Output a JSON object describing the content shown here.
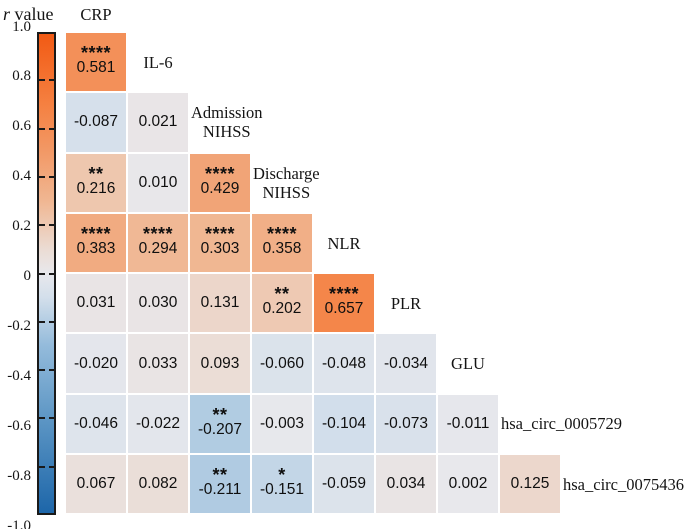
{
  "figure": {
    "colorbar": {
      "title_italic": "r",
      "title_rest": " value",
      "ticks": [
        "1.0",
        "0.8",
        "0.6",
        "0.4",
        "0.2",
        "0",
        "-0.2",
        "-0.4",
        "-0.6",
        "-0.8",
        "-1.0"
      ]
    },
    "top_label": "CRP"
  },
  "chart_data": {
    "type": "heatmap",
    "subtype": "lower_triangle_correlation_matrix",
    "colorbar_label": "r value",
    "colorbar_range": [
      -1,
      1
    ],
    "legend_position": "left",
    "grid": "off",
    "variables": [
      "CRP",
      "IL-6",
      "Admission NIHSS",
      "Discharge NIHSS",
      "NLR",
      "PLR",
      "GLU",
      "hsa_circ_0005729",
      "hsa_circ_0075436"
    ],
    "colormap_stops": [
      {
        "t": -1.0,
        "c": "#1D66A9"
      },
      {
        "t": -0.6,
        "c": "#5E97C5"
      },
      {
        "t": -0.3,
        "c": "#94BBDB"
      },
      {
        "t": -0.1,
        "c": "#D3DFEB"
      },
      {
        "t": 0.0,
        "c": "#E8E8EC"
      },
      {
        "t": 0.1,
        "c": "#EBDCD4"
      },
      {
        "t": 0.3,
        "c": "#F0B793"
      },
      {
        "t": 0.5,
        "c": "#F29A68"
      },
      {
        "t": 0.7,
        "c": "#F58142"
      },
      {
        "t": 1.0,
        "c": "#F25A14"
      }
    ],
    "rows": [
      {
        "variable": "IL-6",
        "label_lines": [
          "IL-6"
        ],
        "label_align": "center",
        "cells": [
          {
            "vs": "CRP",
            "value": "0.581",
            "sig": "****"
          }
        ]
      },
      {
        "variable": "Admission NIHSS",
        "label_lines": [
          "Admission",
          "NIHSS"
        ],
        "label_align": "left",
        "cells": [
          {
            "vs": "CRP",
            "value": "-0.087",
            "sig": ""
          },
          {
            "vs": "IL-6",
            "value": "0.021",
            "sig": ""
          }
        ]
      },
      {
        "variable": "Discharge NIHSS",
        "label_lines": [
          "Discharge",
          "NIHSS"
        ],
        "label_align": "left",
        "cells": [
          {
            "vs": "CRP",
            "value": "0.216",
            "sig": "**"
          },
          {
            "vs": "IL-6",
            "value": "0.010",
            "sig": ""
          },
          {
            "vs": "Admission NIHSS",
            "value": "0.429",
            "sig": "****"
          }
        ]
      },
      {
        "variable": "NLR",
        "label_lines": [
          "NLR"
        ],
        "label_align": "center",
        "cells": [
          {
            "vs": "CRP",
            "value": "0.383",
            "sig": "****"
          },
          {
            "vs": "IL-6",
            "value": "0.294",
            "sig": "****"
          },
          {
            "vs": "Admission NIHSS",
            "value": "0.303",
            "sig": "****"
          },
          {
            "vs": "Discharge NIHSS",
            "value": "0.358",
            "sig": "****"
          }
        ]
      },
      {
        "variable": "PLR",
        "label_lines": [
          "PLR"
        ],
        "label_align": "center",
        "cells": [
          {
            "vs": "CRP",
            "value": "0.031",
            "sig": ""
          },
          {
            "vs": "IL-6",
            "value": "0.030",
            "sig": ""
          },
          {
            "vs": "Admission NIHSS",
            "value": "0.131",
            "sig": ""
          },
          {
            "vs": "Discharge NIHSS",
            "value": "0.202",
            "sig": "**"
          },
          {
            "vs": "NLR",
            "value": "0.657",
            "sig": "****"
          }
        ]
      },
      {
        "variable": "GLU",
        "label_lines": [
          "GLU"
        ],
        "label_align": "center",
        "cells": [
          {
            "vs": "CRP",
            "value": "-0.020",
            "sig": ""
          },
          {
            "vs": "IL-6",
            "value": "0.033",
            "sig": ""
          },
          {
            "vs": "Admission NIHSS",
            "value": "0.093",
            "sig": ""
          },
          {
            "vs": "Discharge NIHSS",
            "value": "-0.060",
            "sig": ""
          },
          {
            "vs": "NLR",
            "value": "-0.048",
            "sig": ""
          },
          {
            "vs": "PLR",
            "value": "-0.034",
            "sig": ""
          }
        ]
      },
      {
        "variable": "hsa_circ_0005729",
        "label_lines": [
          "hsa_circ_0005729"
        ],
        "label_align": "left",
        "cells": [
          {
            "vs": "CRP",
            "value": "-0.046",
            "sig": ""
          },
          {
            "vs": "IL-6",
            "value": "-0.022",
            "sig": ""
          },
          {
            "vs": "Admission NIHSS",
            "value": "-0.207",
            "sig": "**"
          },
          {
            "vs": "Discharge NIHSS",
            "value": "-0.003",
            "sig": ""
          },
          {
            "vs": "NLR",
            "value": "-0.104",
            "sig": ""
          },
          {
            "vs": "PLR",
            "value": "-0.073",
            "sig": ""
          },
          {
            "vs": "GLU",
            "value": "-0.011",
            "sig": ""
          }
        ]
      },
      {
        "variable": "hsa_circ_0075436",
        "label_lines": [
          "hsa_circ_0075436"
        ],
        "label_align": "left",
        "cells": [
          {
            "vs": "CRP",
            "value": "0.067",
            "sig": ""
          },
          {
            "vs": "IL-6",
            "value": "0.082",
            "sig": ""
          },
          {
            "vs": "Admission NIHSS",
            "value": "-0.211",
            "sig": "**"
          },
          {
            "vs": "Discharge NIHSS",
            "value": "-0.151",
            "sig": "*"
          },
          {
            "vs": "NLR",
            "value": "-0.059",
            "sig": ""
          },
          {
            "vs": "PLR",
            "value": "0.034",
            "sig": ""
          },
          {
            "vs": "GLU",
            "value": "0.002",
            "sig": ""
          },
          {
            "vs": "hsa_circ_0005729",
            "value": "0.125",
            "sig": ""
          }
        ]
      }
    ]
  }
}
